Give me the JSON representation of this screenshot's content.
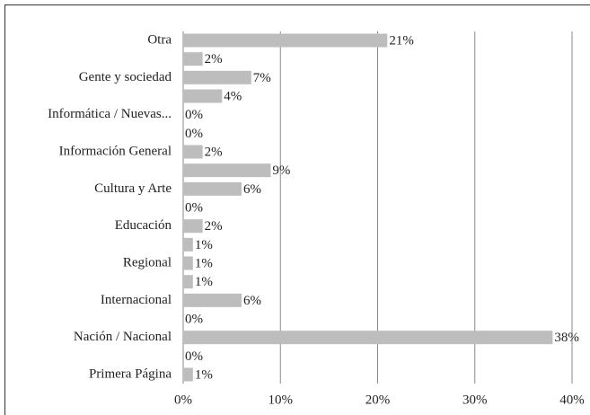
{
  "chart_data": {
    "type": "hbar",
    "categories": [
      "Otra",
      null,
      "Gente y sociedad",
      null,
      "Informática / Nuevas...",
      null,
      "Información General",
      null,
      "Cultura y Arte",
      null,
      "Educación",
      null,
      "Regional",
      null,
      "Internacional",
      null,
      "Nación / Nacional",
      null,
      "Primera Página"
    ],
    "values": [
      21,
      2,
      7,
      4,
      0,
      0,
      2,
      9,
      6,
      0,
      2,
      1,
      1,
      1,
      6,
      0,
      38,
      0,
      1
    ],
    "value_labels": [
      "21%",
      "2%",
      "7%",
      "4%",
      "0%",
      "0%",
      "2%",
      "9%",
      "6%",
      "0%",
      "2%",
      "1%",
      "1%",
      "1%",
      "6%",
      "0%",
      "38%",
      "0%",
      "1%"
    ],
    "color": "#bdbdbd",
    "xlim": [
      0,
      40
    ],
    "xticks": [
      {
        "value": 0,
        "label": "0%"
      },
      {
        "value": 10,
        "label": "10%"
      },
      {
        "value": 20,
        "label": "20%"
      },
      {
        "value": 30,
        "label": "30%"
      },
      {
        "value": 40,
        "label": "40%"
      }
    ],
    "grid": true
  }
}
